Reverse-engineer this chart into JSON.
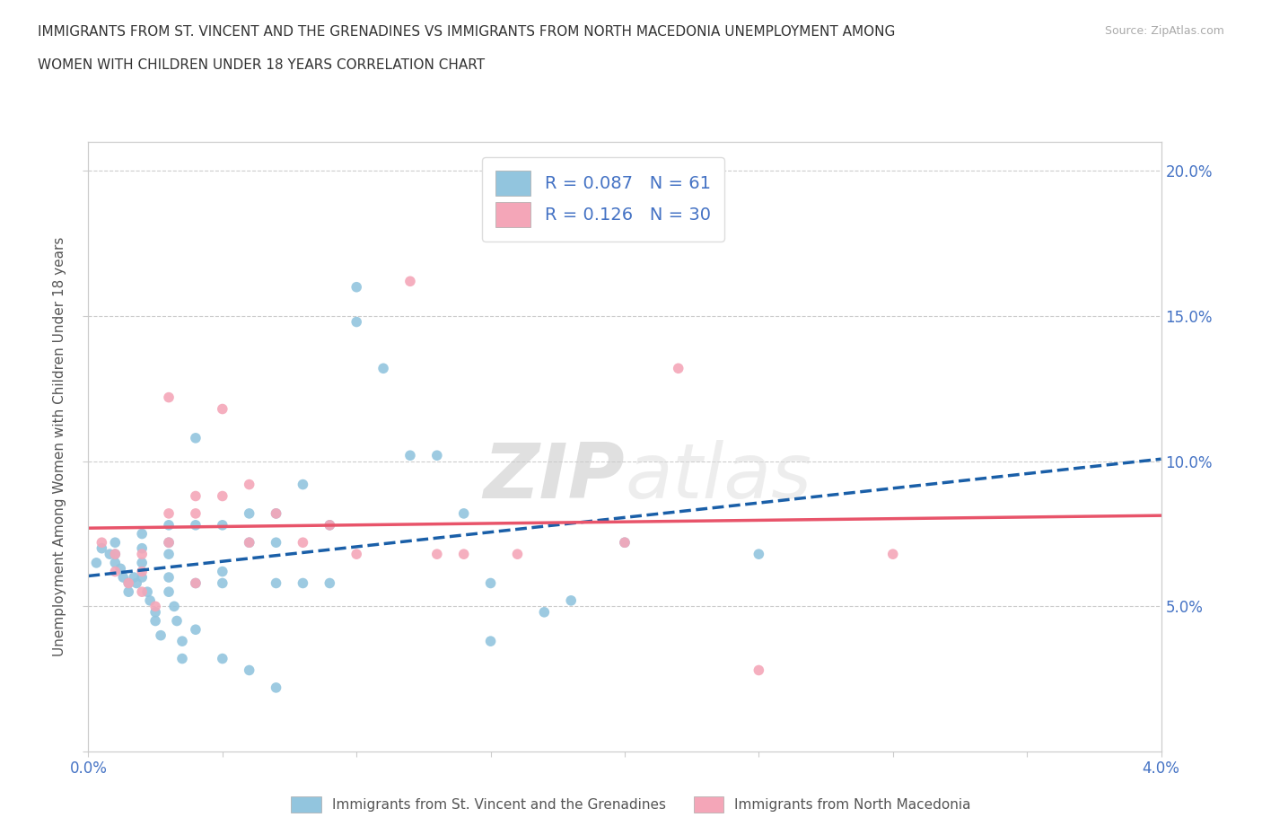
{
  "title_line1": "IMMIGRANTS FROM ST. VINCENT AND THE GRENADINES VS IMMIGRANTS FROM NORTH MACEDONIA UNEMPLOYMENT AMONG",
  "title_line2": "WOMEN WITH CHILDREN UNDER 18 YEARS CORRELATION CHART",
  "source": "Source: ZipAtlas.com",
  "ylabel": "Unemployment Among Women with Children Under 18 years",
  "xlim": [
    0.0,
    0.04
  ],
  "ylim": [
    0.0,
    0.21
  ],
  "y_ticks": [
    0.0,
    0.05,
    0.1,
    0.15,
    0.2
  ],
  "x_ticks": [
    0.0,
    0.005,
    0.01,
    0.015,
    0.02,
    0.025,
    0.03,
    0.035,
    0.04
  ],
  "blue_color": "#92c5de",
  "pink_color": "#f4a6b8",
  "blue_line_color": "#1a5fa8",
  "pink_line_color": "#e8546a",
  "legend_R1": "0.087",
  "legend_N1": "61",
  "legend_R2": "0.126",
  "legend_N2": "30",
  "watermark_zip": "ZIP",
  "watermark_atlas": "atlas",
  "blue_scatter_x": [
    0.0003,
    0.0005,
    0.0008,
    0.001,
    0.001,
    0.001,
    0.0012,
    0.0013,
    0.0015,
    0.0015,
    0.0017,
    0.0018,
    0.002,
    0.002,
    0.002,
    0.002,
    0.0022,
    0.0023,
    0.0025,
    0.0025,
    0.0027,
    0.003,
    0.003,
    0.003,
    0.003,
    0.003,
    0.0032,
    0.0033,
    0.0035,
    0.0035,
    0.004,
    0.004,
    0.004,
    0.004,
    0.005,
    0.005,
    0.005,
    0.005,
    0.006,
    0.006,
    0.006,
    0.007,
    0.007,
    0.007,
    0.007,
    0.008,
    0.008,
    0.009,
    0.009,
    0.01,
    0.01,
    0.011,
    0.012,
    0.013,
    0.014,
    0.015,
    0.015,
    0.017,
    0.018,
    0.02,
    0.025
  ],
  "blue_scatter_y": [
    0.065,
    0.07,
    0.068,
    0.072,
    0.068,
    0.065,
    0.063,
    0.06,
    0.058,
    0.055,
    0.06,
    0.058,
    0.075,
    0.07,
    0.065,
    0.06,
    0.055,
    0.052,
    0.048,
    0.045,
    0.04,
    0.078,
    0.072,
    0.068,
    0.06,
    0.055,
    0.05,
    0.045,
    0.038,
    0.032,
    0.108,
    0.078,
    0.058,
    0.042,
    0.078,
    0.062,
    0.058,
    0.032,
    0.082,
    0.072,
    0.028,
    0.082,
    0.072,
    0.058,
    0.022,
    0.092,
    0.058,
    0.078,
    0.058,
    0.16,
    0.148,
    0.132,
    0.102,
    0.102,
    0.082,
    0.058,
    0.038,
    0.048,
    0.052,
    0.072,
    0.068
  ],
  "pink_scatter_x": [
    0.0005,
    0.001,
    0.001,
    0.0015,
    0.002,
    0.002,
    0.002,
    0.0025,
    0.003,
    0.003,
    0.003,
    0.004,
    0.004,
    0.004,
    0.005,
    0.005,
    0.006,
    0.006,
    0.007,
    0.008,
    0.009,
    0.01,
    0.012,
    0.013,
    0.014,
    0.016,
    0.02,
    0.022,
    0.025,
    0.03
  ],
  "pink_scatter_y": [
    0.072,
    0.068,
    0.062,
    0.058,
    0.068,
    0.062,
    0.055,
    0.05,
    0.122,
    0.082,
    0.072,
    0.088,
    0.082,
    0.058,
    0.118,
    0.088,
    0.092,
    0.072,
    0.082,
    0.072,
    0.078,
    0.068,
    0.162,
    0.068,
    0.068,
    0.068,
    0.072,
    0.132,
    0.028,
    0.068
  ]
}
